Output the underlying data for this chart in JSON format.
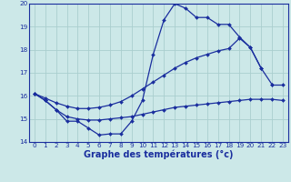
{
  "title": "Graphe des températures (°c)",
  "bg_color": "#cce8e8",
  "grid_color": "#aacece",
  "line_color": "#1a2e9e",
  "xlim": [
    -0.5,
    23.5
  ],
  "ylim": [
    14,
    20
  ],
  "xticks": [
    0,
    1,
    2,
    3,
    4,
    5,
    6,
    7,
    8,
    9,
    10,
    11,
    12,
    13,
    14,
    15,
    16,
    17,
    18,
    19,
    20,
    21,
    22,
    23
  ],
  "yticks": [
    14,
    15,
    16,
    17,
    18,
    19,
    20
  ],
  "hours": [
    0,
    1,
    2,
    3,
    4,
    5,
    6,
    7,
    8,
    9,
    10,
    11,
    12,
    13,
    14,
    15,
    16,
    17,
    18,
    19,
    20,
    21,
    22,
    23
  ],
  "temp_actual": [
    16.1,
    15.8,
    15.4,
    14.9,
    14.9,
    14.6,
    14.3,
    14.35,
    14.35,
    14.9,
    15.8,
    17.8,
    19.3,
    20.0,
    19.8,
    19.4,
    19.4,
    19.1,
    19.1,
    18.55,
    18.1,
    17.2,
    16.5,
    null
  ],
  "temp_min": [
    16.1,
    15.8,
    15.4,
    15.1,
    15.0,
    14.95,
    14.95,
    15.0,
    15.05,
    15.1,
    15.2,
    15.3,
    15.4,
    15.5,
    15.55,
    15.6,
    15.65,
    15.7,
    15.75,
    15.8,
    15.85,
    15.85,
    15.85,
    15.8
  ],
  "temp_max": [
    16.1,
    15.9,
    15.7,
    15.55,
    15.45,
    15.45,
    15.5,
    15.6,
    15.75,
    16.0,
    16.3,
    16.6,
    16.9,
    17.2,
    17.45,
    17.65,
    17.8,
    17.95,
    18.05,
    18.5,
    18.1,
    17.2,
    null,
    null
  ],
  "temp_actual2": [
    null,
    null,
    null,
    null,
    null,
    null,
    null,
    null,
    null,
    null,
    null,
    null,
    null,
    null,
    null,
    null,
    null,
    null,
    null,
    null,
    null,
    null,
    16.5,
    16.5
  ],
  "xlabel_bold": true,
  "xlabel_fontsize": 7.0,
  "tick_fontsize": 5.2,
  "marker_size": 2.0,
  "linewidth": 0.9
}
